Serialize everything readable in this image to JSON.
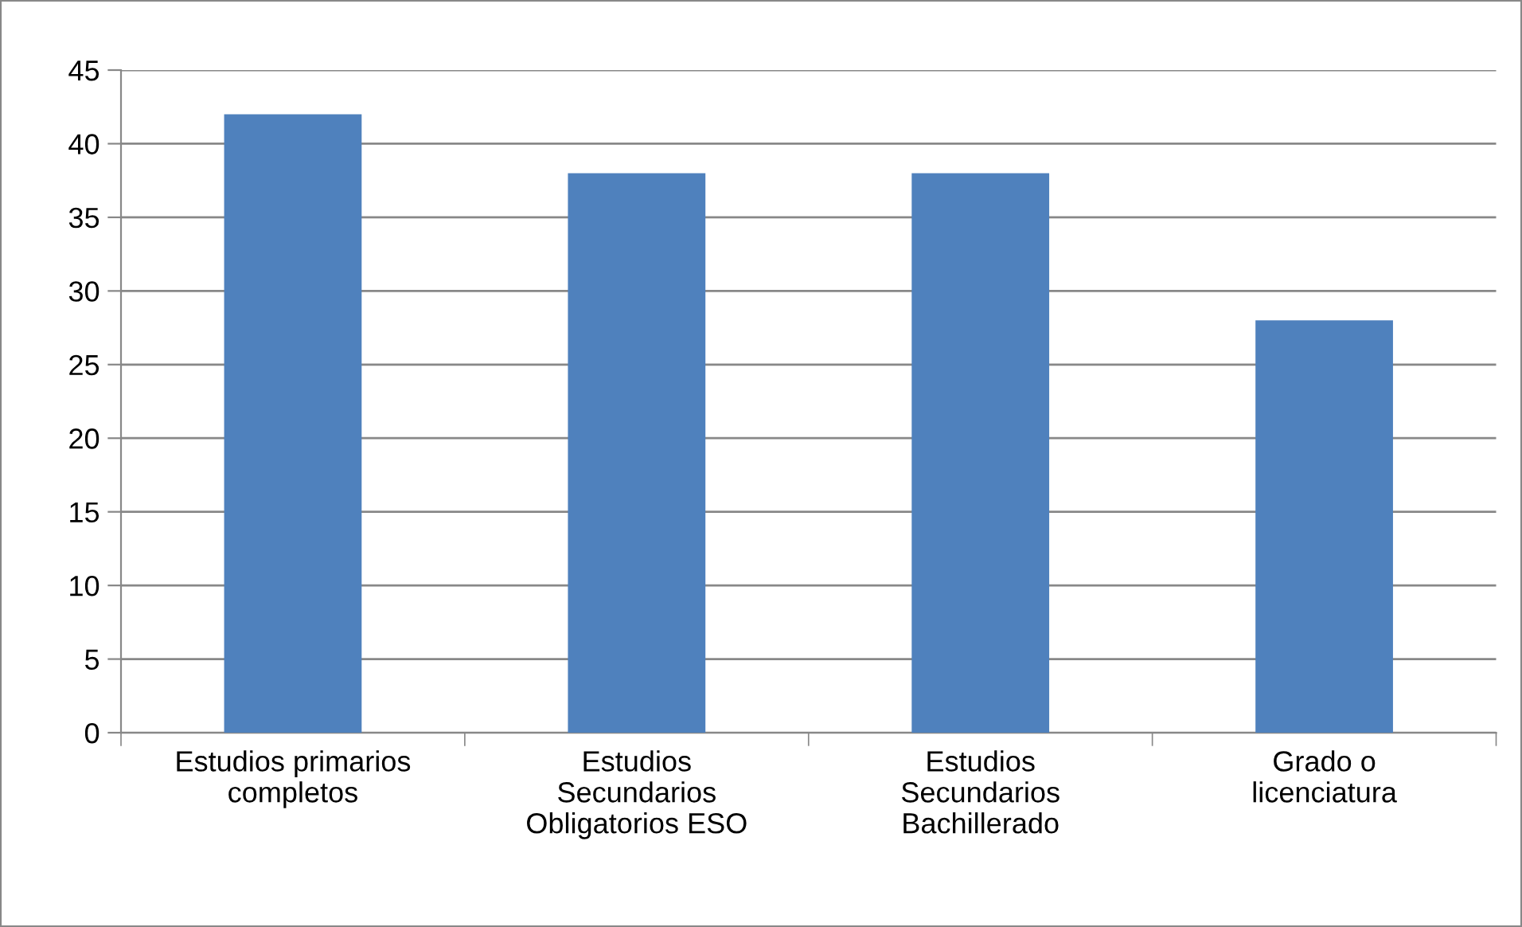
{
  "chart_data": {
    "type": "bar",
    "categories": [
      "Estudios primarios completos",
      "Estudios Secundarios Obligatorios ESO",
      "Estudios Secundarios Bachillerado",
      "Grado o licenciatura"
    ],
    "values": [
      42,
      38,
      38,
      28
    ],
    "color": "#4f81bd",
    "ylim": [
      0,
      45
    ],
    "yticks": [
      0,
      5,
      10,
      15,
      20,
      25,
      30,
      35,
      40,
      45
    ],
    "grid": "y",
    "legend": false
  }
}
